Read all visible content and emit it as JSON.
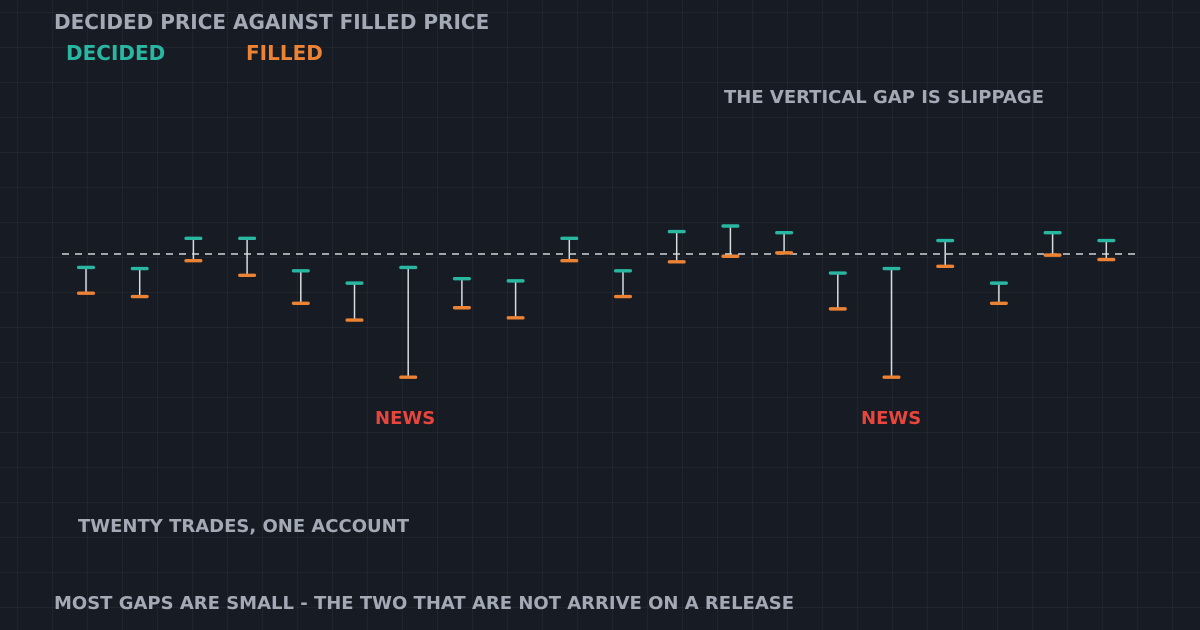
{
  "colors": {
    "background": "#161b24",
    "decided": "#2ab7a2",
    "filled": "#ec8233",
    "connector": "#d8dbe0",
    "reference_line": "#cfd3d9",
    "news": "#e8453c",
    "text": "#a3a9b5"
  },
  "chart_data": {
    "type": "scatter",
    "title": "DECIDED PRICE AGAINST FILLED PRICE",
    "series": [
      {
        "name": "DECIDED",
        "values": [
          -1.2,
          -1.3,
          1.4,
          1.4,
          -1.5,
          -2.6,
          -1.2,
          -2.2,
          -2.4,
          1.4,
          -1.5,
          2.0,
          2.5,
          1.9,
          -1.7,
          -1.3,
          1.2,
          -2.6,
          1.9,
          1.2
        ]
      },
      {
        "name": "FILLED",
        "values": [
          -3.5,
          -3.8,
          -0.6,
          -1.9,
          -4.4,
          -5.9,
          -11.0,
          -4.8,
          -5.7,
          -0.6,
          -3.8,
          -0.7,
          -0.2,
          0.1,
          -4.9,
          -11.0,
          -1.1,
          -4.4,
          -0.1,
          -0.5
        ]
      }
    ],
    "x": [
      1,
      2,
      3,
      4,
      5,
      6,
      7,
      8,
      9,
      10,
      11,
      12,
      13,
      14,
      15,
      16,
      17,
      18,
      19,
      20
    ],
    "reference_line": 0,
    "grid": true,
    "legend_position": "top-left",
    "annotations": [
      {
        "text": "NEWS",
        "trade": 7
      },
      {
        "text": "NEWS",
        "trade": 16
      }
    ]
  },
  "labels": {
    "title": "DECIDED PRICE AGAINST FILLED PRICE",
    "legend_decided": "DECIDED",
    "legend_filled": "FILLED",
    "note_gap": "THE VERTICAL GAP IS SLIPPAGE",
    "news_1": "NEWS",
    "news_2": "NEWS",
    "note_count": "TWENTY TRADES, ONE ACCOUNT",
    "note_bottom": "MOST GAPS ARE SMALL  -  THE TWO THAT ARE NOT ARRIVE ON A RELEASE"
  }
}
